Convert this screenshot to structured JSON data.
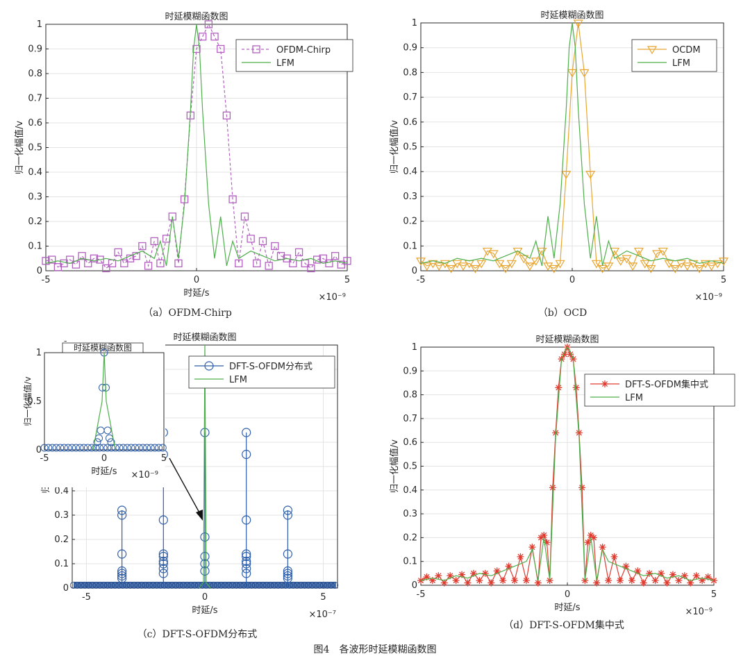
{
  "figure_caption": "图4　各波形时延模糊函数图",
  "chart_data": [
    {
      "id": "a",
      "type": "line",
      "title": "时延模糊函数图",
      "xlabel": "时延/s",
      "ylabel": "归一化幅值/v",
      "caption": "（a）OFDM-Chirp",
      "xlim": [
        -5,
        5
      ],
      "ylim": [
        0,
        1
      ],
      "x_exponent": "×10⁻⁹",
      "xticks": [
        -5,
        0,
        5
      ],
      "yticks": [
        0,
        0.1,
        0.2,
        0.3,
        0.4,
        0.5,
        0.6,
        0.7,
        0.8,
        0.9,
        1
      ],
      "ytick_labels": [
        "0",
        "0.1",
        "0.2",
        "0.3",
        "0.4",
        "0.5",
        "0.6",
        "0.7",
        "0.8",
        "0.9",
        "1"
      ],
      "legend": {
        "position": "top-right",
        "entries": [
          "OFDM-Chirp",
          "LFM"
        ]
      },
      "series": [
        {
          "name": "OFDM-Chirp",
          "color": "#b25fc0",
          "dash": true,
          "marker": "square",
          "x": [
            -5,
            -4.8,
            -4.6,
            -4.4,
            -4.2,
            -4.0,
            -3.8,
            -3.6,
            -3.4,
            -3.2,
            -3.0,
            -2.8,
            -2.6,
            -2.4,
            -2.2,
            -2.0,
            -1.8,
            -1.6,
            -1.4,
            -1.2,
            -1.0,
            -0.8,
            -0.6,
            -0.4,
            -0.2,
            0,
            0.2,
            0.4,
            0.6,
            0.8,
            1.0,
            1.2,
            1.4,
            1.6,
            1.8,
            2.0,
            2.2,
            2.4,
            2.6,
            2.8,
            3.0,
            3.2,
            3.4,
            3.6,
            3.8,
            4.0,
            4.2,
            4.4,
            4.6,
            4.8,
            5
          ],
          "y": [
            0.04,
            0.045,
            0.015,
            0.03,
            0.045,
            0.025,
            0.06,
            0.03,
            0.05,
            0.045,
            0.01,
            0.03,
            0.075,
            0.03,
            0.05,
            0.06,
            0.1,
            0.02,
            0.12,
            0.03,
            0.13,
            0.22,
            0.03,
            0.29,
            0.63,
            0.9,
            0.95,
            1.0,
            0.95,
            0.9,
            0.63,
            0.29,
            0.03,
            0.22,
            0.13,
            0.03,
            0.12,
            0.02,
            0.1,
            0.06,
            0.05,
            0.03,
            0.075,
            0.03,
            0.01,
            0.045,
            0.05,
            0.03,
            0.06,
            0.025,
            0.04
          ]
        },
        {
          "name": "LFM",
          "color": "#4daf4a",
          "dash": false,
          "marker": "none",
          "x": [
            -5,
            -4.6,
            -4.2,
            -3.8,
            -3.4,
            -3.0,
            -2.6,
            -2.2,
            -1.8,
            -1.4,
            -1.2,
            -1.0,
            -0.8,
            -0.6,
            -0.4,
            -0.2,
            -0.1,
            0,
            0.1,
            0.2,
            0.4,
            0.6,
            0.8,
            1.0,
            1.2,
            1.4,
            1.8,
            2.2,
            2.6,
            3.0,
            3.4,
            3.8,
            4.2,
            4.6,
            5
          ],
          "y": [
            0.03,
            0.04,
            0.03,
            0.05,
            0.04,
            0.05,
            0.04,
            0.06,
            0.08,
            0.05,
            0.12,
            0.02,
            0.22,
            0.05,
            0.27,
            0.65,
            0.9,
            1.0,
            0.9,
            0.65,
            0.27,
            0.05,
            0.22,
            0.02,
            0.12,
            0.05,
            0.08,
            0.06,
            0.04,
            0.05,
            0.04,
            0.05,
            0.03,
            0.04,
            0.03
          ]
        }
      ]
    },
    {
      "id": "b",
      "type": "line",
      "title": "时延模糊函数图",
      "xlabel": "",
      "ylabel": "归一化幅值/v",
      "caption": "（b）OCD",
      "xlim": [
        -5,
        5
      ],
      "ylim": [
        0,
        1
      ],
      "x_exponent": "×10⁻⁹",
      "xticks": [
        -5,
        0,
        5
      ],
      "yticks": [
        0,
        0.1,
        0.2,
        0.3,
        0.4,
        0.5,
        0.6,
        0.7,
        0.8,
        0.9,
        1
      ],
      "ytick_labels": [
        "0",
        "0.1",
        "0.2",
        "0.3",
        "0.4",
        "0.5",
        "0.6",
        "0.7",
        "0.8",
        "0.9",
        "1"
      ],
      "legend": {
        "position": "top-right",
        "entries": [
          "OCDM",
          "LFM"
        ]
      },
      "series": [
        {
          "name": "OCDM",
          "color": "#e8a530",
          "dash": false,
          "marker": "triangle-down",
          "x": [
            -5,
            -4.8,
            -4.6,
            -4.4,
            -4.2,
            -4.0,
            -3.8,
            -3.6,
            -3.4,
            -3.2,
            -3.0,
            -2.8,
            -2.6,
            -2.4,
            -2.2,
            -2.0,
            -1.8,
            -1.6,
            -1.4,
            -1.2,
            -1.0,
            -0.8,
            -0.6,
            -0.4,
            -0.2,
            0,
            0.2,
            0.4,
            0.6,
            0.8,
            1.0,
            1.2,
            1.4,
            1.6,
            1.8,
            2.0,
            2.2,
            2.4,
            2.6,
            2.8,
            3.0,
            3.2,
            3.4,
            3.6,
            3.8,
            4.0,
            4.2,
            4.4,
            4.6,
            4.8,
            5
          ],
          "y": [
            0.04,
            0.02,
            0.03,
            0.02,
            0.03,
            0.01,
            0.03,
            0.02,
            0.03,
            0.01,
            0.03,
            0.08,
            0.07,
            0.03,
            0.01,
            0.03,
            0.08,
            0.05,
            0.02,
            0.04,
            0.08,
            0.02,
            0.01,
            0.03,
            0.39,
            0.8,
            1.0,
            0.8,
            0.39,
            0.03,
            0.01,
            0.02,
            0.08,
            0.04,
            0.05,
            0.02,
            0.08,
            0.03,
            0.01,
            0.07,
            0.08,
            0.03,
            0.01,
            0.03,
            0.02,
            0.03,
            0.01,
            0.03,
            0.02,
            0.03,
            0.04
          ]
        },
        {
          "name": "LFM",
          "color": "#4daf4a",
          "dash": false,
          "marker": "none",
          "x": [
            -5,
            -4.6,
            -4.2,
            -3.8,
            -3.4,
            -3.0,
            -2.6,
            -2.2,
            -1.8,
            -1.4,
            -1.2,
            -1.0,
            -0.8,
            -0.6,
            -0.4,
            -0.2,
            -0.1,
            0,
            0.1,
            0.2,
            0.4,
            0.6,
            0.8,
            1.0,
            1.2,
            1.4,
            1.8,
            2.2,
            2.6,
            3.0,
            3.4,
            3.8,
            4.2,
            4.6,
            5
          ],
          "y": [
            0.03,
            0.04,
            0.03,
            0.05,
            0.04,
            0.05,
            0.04,
            0.06,
            0.08,
            0.05,
            0.12,
            0.02,
            0.22,
            0.05,
            0.27,
            0.65,
            0.9,
            1.0,
            0.9,
            0.65,
            0.27,
            0.05,
            0.22,
            0.02,
            0.12,
            0.05,
            0.08,
            0.06,
            0.04,
            0.05,
            0.04,
            0.05,
            0.03,
            0.04,
            0.03
          ]
        }
      ]
    },
    {
      "id": "c",
      "type": "line",
      "title": "时延模糊函数图",
      "xlabel": "时延/s",
      "ylabel": "归一化幅值/v",
      "caption": "（c）DFT-S-OFDM分布式",
      "xlim": [
        -5.6,
        5.6
      ],
      "ylim": [
        0,
        1
      ],
      "x_exponent": "×10⁻⁷",
      "xticks": [
        -5,
        0,
        5
      ],
      "yticks": [
        0,
        0.1,
        0.2,
        0.3,
        0.4,
        0.5,
        0.6,
        0.7,
        0.8,
        0.9,
        1
      ],
      "ytick_labels": [
        "0",
        "0.1",
        "0.2",
        "0.3",
        "0.4",
        "0.5",
        "0.6",
        "0.7",
        "0.8",
        "0.9",
        "1"
      ],
      "legend": {
        "position": "top-right",
        "entries": [
          "DFT-S-OFDM分布式",
          "LFM"
        ]
      },
      "stems": [
        {
          "x": -3.5,
          "values": [
            0.32,
            0.3,
            0.14,
            0.07,
            0.06,
            0.05,
            0.04
          ]
        },
        {
          "x": -1.75,
          "values": [
            0.64,
            0.55,
            0.28,
            0.14,
            0.13,
            0.11,
            0.1,
            0.08,
            0.06
          ]
        },
        {
          "x": 0,
          "values": [
            0.64,
            0.21,
            0.13,
            0.1,
            0.07
          ]
        },
        {
          "x": 1.75,
          "values": [
            0.64,
            0.55,
            0.28,
            0.14,
            0.13,
            0.11,
            0.1,
            0.08,
            0.06
          ]
        },
        {
          "x": 3.5,
          "values": [
            0.32,
            0.3,
            0.14,
            0.07,
            0.06,
            0.05,
            0.04
          ]
        }
      ],
      "lfm_peak": {
        "name": "LFM",
        "x": 0,
        "y": 1.0
      },
      "series_colors": {
        "DFT-S-OFDM分布式": "#2d5da8",
        "LFM": "#4daf4a"
      },
      "inset": {
        "title": "时延模糊函数图",
        "xlabel": "时延/s",
        "ylabel": "归一化幅值/v",
        "xlim": [
          -5,
          5
        ],
        "ylim": [
          0,
          1
        ],
        "x_exponent": "×10⁻⁹",
        "xticks": [
          -5,
          0,
          5
        ],
        "yticks": [
          0,
          0.5,
          1
        ],
        "ytick_labels": [
          "0",
          "0.5",
          "1"
        ],
        "peak_values": [
          1.0,
          0.64,
          0.64,
          0.2,
          0.2,
          0.12,
          0.12,
          0.08,
          0.08
        ]
      }
    },
    {
      "id": "d",
      "type": "line",
      "title": "时延模糊函数图",
      "xlabel": "时延/s",
      "ylabel": "归一化幅值/v",
      "caption": "（d）DFT-S-OFDM集中式",
      "xlim": [
        -5,
        5
      ],
      "ylim": [
        0,
        1
      ],
      "x_exponent": "×10⁻⁹",
      "xticks": [
        -5,
        0,
        5
      ],
      "yticks": [
        0,
        0.1,
        0.2,
        0.3,
        0.4,
        0.5,
        0.6,
        0.7,
        0.8,
        0.9,
        1
      ],
      "ytick_labels": [
        "0",
        "0.1",
        "0.2",
        "0.3",
        "0.4",
        "0.5",
        "0.6",
        "0.7",
        "0.8",
        "0.9",
        "1"
      ],
      "legend": {
        "position": "top-right",
        "entries": [
          "DFT-S-OFDM集中式",
          "LFM"
        ]
      },
      "series": [
        {
          "name": "DFT-S-OFDM集中式",
          "color": "#e03a2f",
          "dash": false,
          "marker": "asterisk",
          "x": [
            -5,
            -4.8,
            -4.6,
            -4.4,
            -4.2,
            -4.0,
            -3.8,
            -3.6,
            -3.4,
            -3.2,
            -3.0,
            -2.8,
            -2.6,
            -2.4,
            -2.2,
            -2.0,
            -1.8,
            -1.6,
            -1.4,
            -1.2,
            -1.0,
            -0.9,
            -0.8,
            -0.7,
            -0.6,
            -0.5,
            -0.4,
            -0.3,
            -0.2,
            -0.1,
            0,
            0.1,
            0.2,
            0.3,
            0.4,
            0.5,
            0.6,
            0.7,
            0.8,
            0.9,
            1.0,
            1.2,
            1.4,
            1.6,
            1.8,
            2.0,
            2.2,
            2.4,
            2.6,
            2.8,
            3.0,
            3.2,
            3.4,
            3.6,
            3.8,
            4.0,
            4.2,
            4.4,
            4.6,
            4.8,
            5
          ],
          "y": [
            0.02,
            0.035,
            0.02,
            0.04,
            0.01,
            0.04,
            0.02,
            0.045,
            0.01,
            0.05,
            0.02,
            0.05,
            0.01,
            0.06,
            0.02,
            0.08,
            0.02,
            0.12,
            0.02,
            0.16,
            0.01,
            0.2,
            0.21,
            0.18,
            0.02,
            0.41,
            0.64,
            0.83,
            0.95,
            0.97,
            1.0,
            0.97,
            0.95,
            0.83,
            0.64,
            0.41,
            0.02,
            0.18,
            0.21,
            0.2,
            0.01,
            0.16,
            0.02,
            0.12,
            0.02,
            0.08,
            0.02,
            0.06,
            0.01,
            0.05,
            0.02,
            0.05,
            0.01,
            0.045,
            0.02,
            0.04,
            0.01,
            0.04,
            0.02,
            0.035,
            0.02
          ]
        },
        {
          "name": "LFM",
          "color": "#4daf4a",
          "dash": false,
          "marker": "none",
          "x": [
            -5,
            -4.6,
            -4.2,
            -3.8,
            -3.4,
            -3.0,
            -2.6,
            -2.2,
            -1.8,
            -1.4,
            -1.2,
            -1.0,
            -0.8,
            -0.6,
            -0.4,
            -0.2,
            -0.1,
            0,
            0.1,
            0.2,
            0.4,
            0.6,
            0.8,
            1.0,
            1.2,
            1.4,
            1.8,
            2.2,
            2.6,
            3.0,
            3.4,
            3.8,
            4.2,
            4.6,
            5
          ],
          "y": [
            0.02,
            0.03,
            0.02,
            0.04,
            0.03,
            0.05,
            0.04,
            0.06,
            0.08,
            0.1,
            0.15,
            0.02,
            0.2,
            0.02,
            0.62,
            0.95,
            0.98,
            1.0,
            0.98,
            0.95,
            0.62,
            0.02,
            0.2,
            0.02,
            0.15,
            0.1,
            0.08,
            0.06,
            0.04,
            0.05,
            0.03,
            0.04,
            0.02,
            0.03,
            0.02
          ]
        }
      ]
    }
  ]
}
